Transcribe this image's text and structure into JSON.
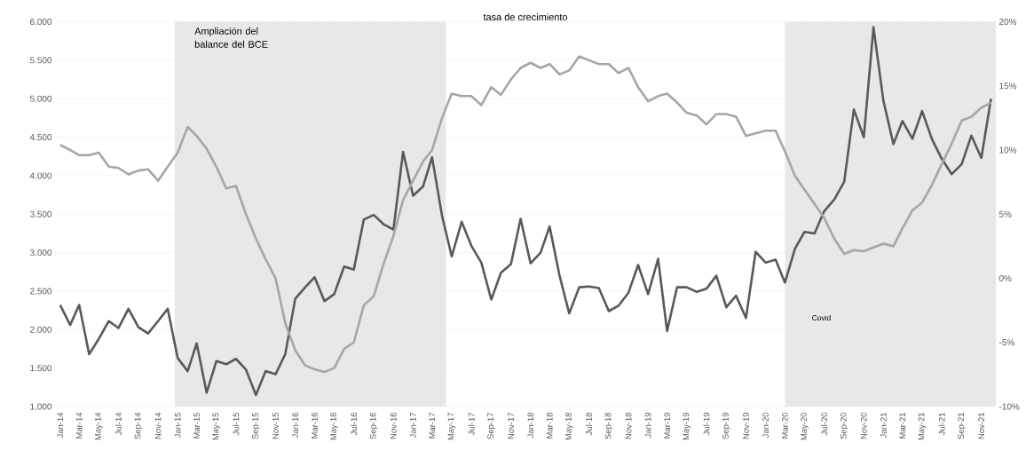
{
  "chart_data": {
    "type": "line",
    "title": "tasa de crecimiento",
    "x": [
      "2014-01",
      "2014-02",
      "2014-03",
      "2014-04",
      "2014-05",
      "2014-06",
      "2014-07",
      "2014-08",
      "2014-09",
      "2014-10",
      "2014-11",
      "2014-12",
      "2015-01",
      "2015-02",
      "2015-03",
      "2015-04",
      "2015-05",
      "2015-06",
      "2015-07",
      "2015-08",
      "2015-09",
      "2015-10",
      "2015-11",
      "2015-12",
      "2016-01",
      "2016-02",
      "2016-03",
      "2016-04",
      "2016-05",
      "2016-06",
      "2016-07",
      "2016-08",
      "2016-09",
      "2016-10",
      "2016-11",
      "2016-12",
      "2017-01",
      "2017-02",
      "2017-03",
      "2017-04",
      "2017-05",
      "2017-06",
      "2017-07",
      "2017-08",
      "2017-09",
      "2017-10",
      "2017-11",
      "2017-12",
      "2018-01",
      "2018-02",
      "2018-03",
      "2018-04",
      "2018-05",
      "2018-06",
      "2018-07",
      "2018-08",
      "2018-09",
      "2018-10",
      "2018-11",
      "2018-12",
      "2019-01",
      "2019-02",
      "2019-03",
      "2019-04",
      "2019-05",
      "2019-06",
      "2019-07",
      "2019-08",
      "2019-09",
      "2019-10",
      "2019-11",
      "2019-12",
      "2020-01",
      "2020-02",
      "2020-03",
      "2020-04",
      "2020-05",
      "2020-06",
      "2020-07",
      "2020-08",
      "2020-09",
      "2020-10",
      "2020-11",
      "2020-12",
      "2021-01",
      "2021-02",
      "2021-03",
      "2021-04",
      "2021-05",
      "2021-06",
      "2021-07",
      "2021-08",
      "2021-09",
      "2021-10",
      "2021-11",
      "2021-12"
    ],
    "series": [
      {
        "color": "#595959",
        "axis": "y",
        "values": [
          2320,
          2060,
          2320,
          1680,
          1880,
          2110,
          2020,
          2270,
          2030,
          1950,
          2110,
          2270,
          1630,
          1460,
          1820,
          1180,
          1590,
          1550,
          1620,
          1480,
          1150,
          1460,
          1420,
          1680,
          2400,
          2550,
          2680,
          2370,
          2460,
          2820,
          2780,
          3430,
          3490,
          3370,
          3300,
          4310,
          3740,
          3860,
          4240,
          3480,
          2950,
          3400,
          3090,
          2870,
          2390,
          2740,
          2850,
          3440,
          2860,
          3000,
          3340,
          2700,
          2210,
          2550,
          2560,
          2540,
          2240,
          2310,
          2480,
          2840,
          2460,
          2920,
          1980,
          2550,
          2550,
          2490,
          2530,
          2700,
          2290,
          2440,
          2150,
          3010,
          2870,
          2910,
          2610,
          3050,
          3270,
          3250,
          3540,
          3690,
          3920,
          4860,
          4500,
          5930,
          4970,
          4410,
          4710,
          4480,
          4840,
          4470,
          4220,
          4020,
          4150,
          4520,
          4230,
          5000
        ]
      },
      {
        "color": "#a6a6a6",
        "axis": "y2",
        "values": [
          10.4,
          10.0,
          9.6,
          9.6,
          9.8,
          8.7,
          8.6,
          8.1,
          8.4,
          8.5,
          7.6,
          8.7,
          9.8,
          11.8,
          11.1,
          10.1,
          8.7,
          7.0,
          7.2,
          5.0,
          3.1,
          1.5,
          0.0,
          -3.5,
          -5.6,
          -6.8,
          -7.1,
          -7.3,
          -7.0,
          -5.5,
          -5.0,
          -2.1,
          -1.4,
          1.1,
          3.3,
          6.1,
          7.6,
          9.1,
          10.0,
          12.5,
          14.4,
          14.2,
          14.2,
          13.5,
          14.9,
          14.3,
          15.5,
          16.4,
          16.8,
          16.4,
          16.7,
          15.9,
          16.2,
          17.3,
          17.0,
          16.7,
          16.7,
          16.0,
          16.4,
          14.9,
          13.8,
          14.2,
          14.4,
          13.7,
          12.9,
          12.7,
          12.0,
          12.8,
          12.8,
          12.6,
          11.1,
          11.3,
          11.5,
          11.5,
          9.9,
          8.0,
          6.9,
          5.8,
          4.7,
          3.1,
          1.9,
          2.2,
          2.1,
          2.4,
          2.7,
          2.5,
          3.9,
          5.3,
          5.9,
          7.3,
          8.9,
          10.5,
          12.3,
          12.6,
          13.3,
          13.7
        ]
      }
    ],
    "xlim": [
      "2013-12-16",
      "2021-12-16"
    ],
    "xticks": [
      {
        "value": "2014-01",
        "label": "Jan-14"
      },
      {
        "value": "2014-03",
        "label": "Mar-14"
      },
      {
        "value": "2014-05",
        "label": "May-14"
      },
      {
        "value": "2014-07",
        "label": "Jul-14"
      },
      {
        "value": "2014-09",
        "label": "Sep-14"
      },
      {
        "value": "2014-11",
        "label": "Nov-14"
      },
      {
        "value": "2015-01",
        "label": "Jan-15"
      },
      {
        "value": "2015-03",
        "label": "Mar-15"
      },
      {
        "value": "2015-05",
        "label": "May-15"
      },
      {
        "value": "2015-07",
        "label": "Jul-15"
      },
      {
        "value": "2015-09",
        "label": "Sep-15"
      },
      {
        "value": "2015-11",
        "label": "Nov-15"
      },
      {
        "value": "2016-01",
        "label": "Jan-16"
      },
      {
        "value": "2016-03",
        "label": "Mar-16"
      },
      {
        "value": "2016-05",
        "label": "May-16"
      },
      {
        "value": "2016-07",
        "label": "Jul-16"
      },
      {
        "value": "2016-09",
        "label": "Sep-16"
      },
      {
        "value": "2016-11",
        "label": "Nov-16"
      },
      {
        "value": "2017-01",
        "label": "Jan-17"
      },
      {
        "value": "2017-03",
        "label": "Mar-17"
      },
      {
        "value": "2017-05",
        "label": "May-17"
      },
      {
        "value": "2017-07",
        "label": "Jul-17"
      },
      {
        "value": "2017-09",
        "label": "Sep-17"
      },
      {
        "value": "2017-11",
        "label": "Nov-17"
      },
      {
        "value": "2018-01",
        "label": "Jan-18"
      },
      {
        "value": "2018-03",
        "label": "Mar-18"
      },
      {
        "value": "2018-05",
        "label": "May-18"
      },
      {
        "value": "2018-07",
        "label": "Jul-18"
      },
      {
        "value": "2018-09",
        "label": "Sep-18"
      },
      {
        "value": "2018-11",
        "label": "Nov-18"
      },
      {
        "value": "2019-01",
        "label": "Jan-19"
      },
      {
        "value": "2019-03",
        "label": "Mar-19"
      },
      {
        "value": "2019-05",
        "label": "May-19"
      },
      {
        "value": "2019-07",
        "label": "Jul-19"
      },
      {
        "value": "2019-09",
        "label": "Sep-19"
      },
      {
        "value": "2019-11",
        "label": "Nov-19"
      },
      {
        "value": "2020-01",
        "label": "Jan-20"
      },
      {
        "value": "2020-03",
        "label": "Mar-20"
      },
      {
        "value": "2020-05",
        "label": "May-20"
      },
      {
        "value": "2020-07",
        "label": "Jul-20"
      },
      {
        "value": "2020-09",
        "label": "Sep-20"
      },
      {
        "value": "2020-11",
        "label": "Nov-20"
      },
      {
        "value": "2021-01",
        "label": "Jan-21"
      },
      {
        "value": "2021-03",
        "label": "Mar-21"
      },
      {
        "value": "2021-05",
        "label": "May-21"
      },
      {
        "value": "2021-07",
        "label": "Jul-21"
      },
      {
        "value": "2021-09",
        "label": "Sep-21"
      },
      {
        "value": "2021-11",
        "label": "Nov-21"
      }
    ],
    "ylim": [
      1000,
      6000
    ],
    "yticks": [
      {
        "value": 1000,
        "label": "1.000"
      },
      {
        "value": 1500,
        "label": "1.500"
      },
      {
        "value": 2000,
        "label": "2.000"
      },
      {
        "value": 2500,
        "label": "2.500"
      },
      {
        "value": 3000,
        "label": "3.000"
      },
      {
        "value": 3500,
        "label": "3.500"
      },
      {
        "value": 4000,
        "label": "4.000"
      },
      {
        "value": 4500,
        "label": "4.500"
      },
      {
        "value": 5000,
        "label": "5.000"
      },
      {
        "value": 5500,
        "label": "5.500"
      },
      {
        "value": 6000,
        "label": "6.000"
      }
    ],
    "y2lim": [
      -10,
      20
    ],
    "y2ticks": [
      {
        "value": -10,
        "label": "-10%"
      },
      {
        "value": -5,
        "label": "-5%"
      },
      {
        "value": 0,
        "label": "0%"
      },
      {
        "value": 5,
        "label": "5%"
      },
      {
        "value": 10,
        "label": "10%"
      },
      {
        "value": 15,
        "label": "15%"
      },
      {
        "value": 20,
        "label": "20%"
      }
    ],
    "bands": [
      {
        "axis": "x",
        "from": "2014-12-23",
        "to": "2017-04-13",
        "label": "Ampliación del balance del BCE",
        "color": "#e8e8e8"
      },
      {
        "axis": "x",
        "from": "2020-03-01",
        "to": "2021-12-16",
        "label": "Covid",
        "color": "#e8e8e8"
      }
    ],
    "grid": "y"
  }
}
